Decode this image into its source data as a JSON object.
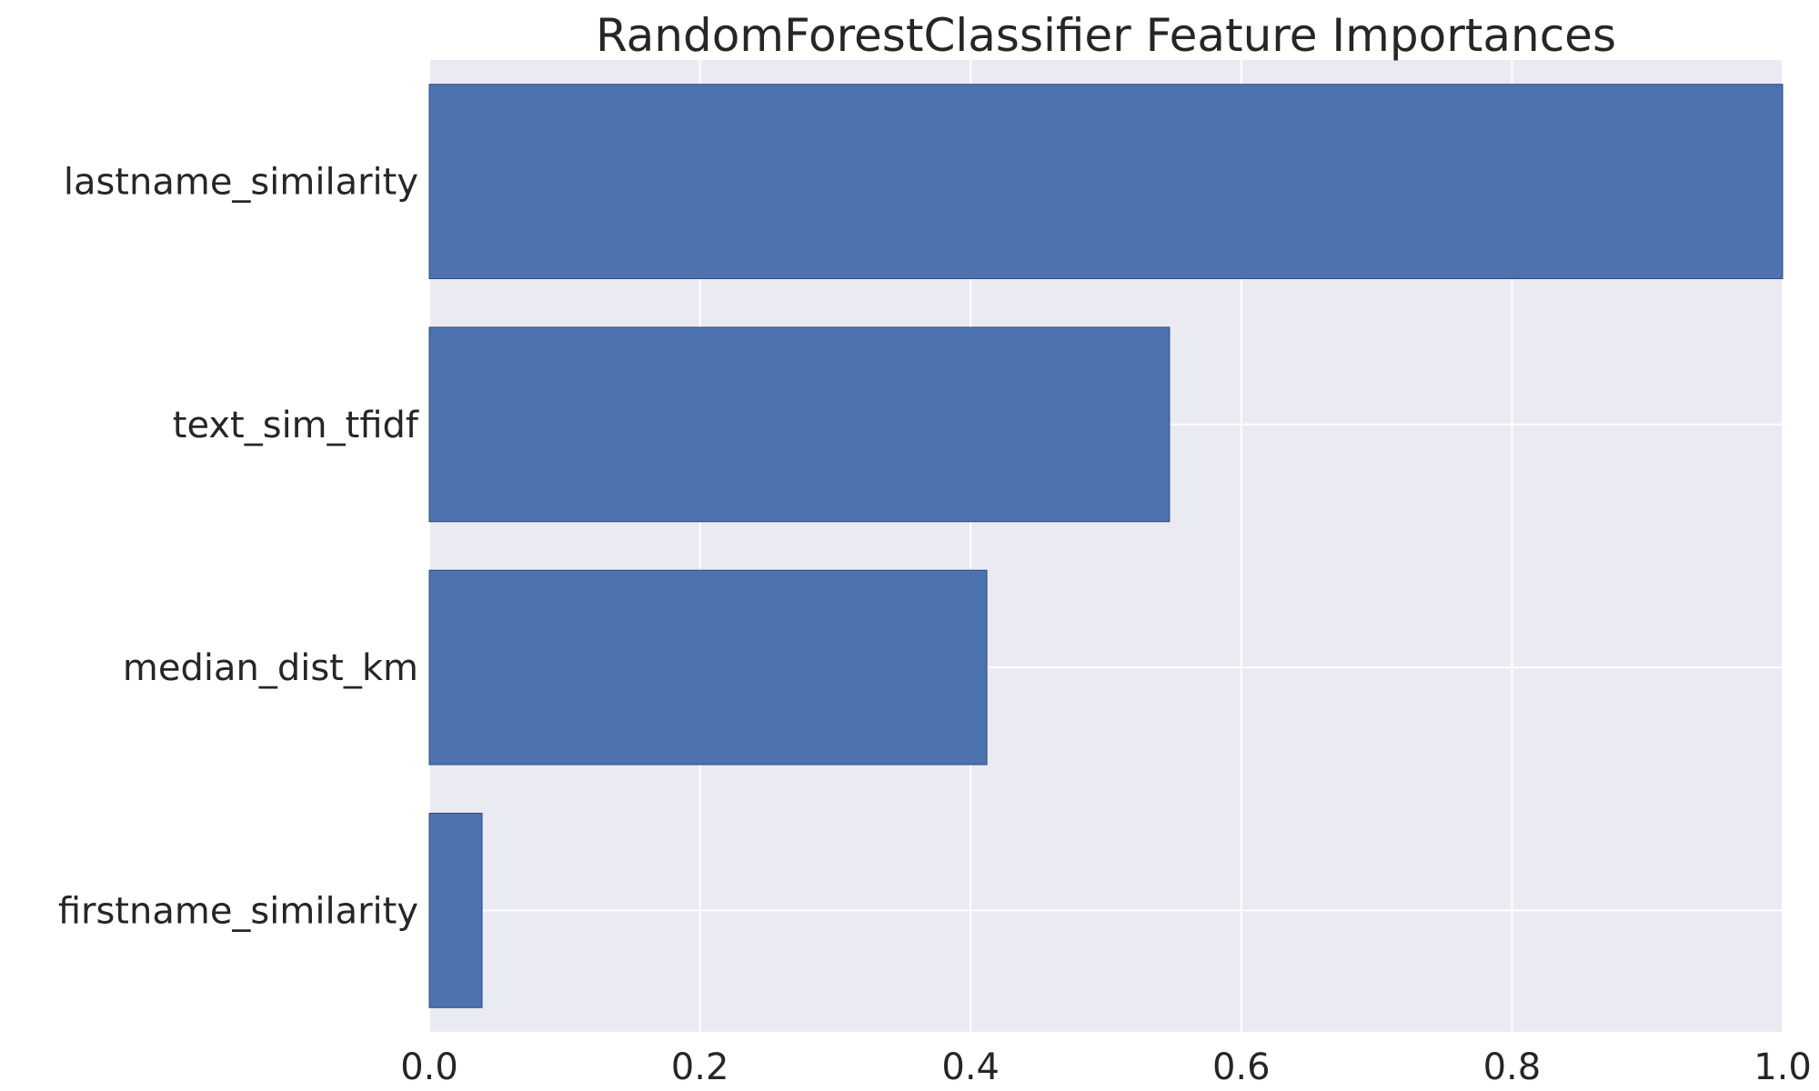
{
  "chart_data": {
    "type": "bar",
    "orientation": "horizontal",
    "title": "RandomForestClassifier Feature Importances",
    "xlabel": "",
    "ylabel": "",
    "categories": [
      "lastname_similarity",
      "text_sim_tfidf",
      "median_dist_km",
      "firstname_similarity"
    ],
    "values": [
      1.0,
      0.547,
      0.412,
      0.039
    ],
    "xlim": [
      0.0,
      1.0
    ],
    "xticks": [
      "0.0",
      "0.2",
      "0.4",
      "0.6",
      "0.8",
      "1.0"
    ],
    "grid": true,
    "legend": "none",
    "colors": {
      "bar": "#4c72b0",
      "background": "#eaeaf2",
      "grid": "#ffffff",
      "text": "#262626"
    }
  }
}
